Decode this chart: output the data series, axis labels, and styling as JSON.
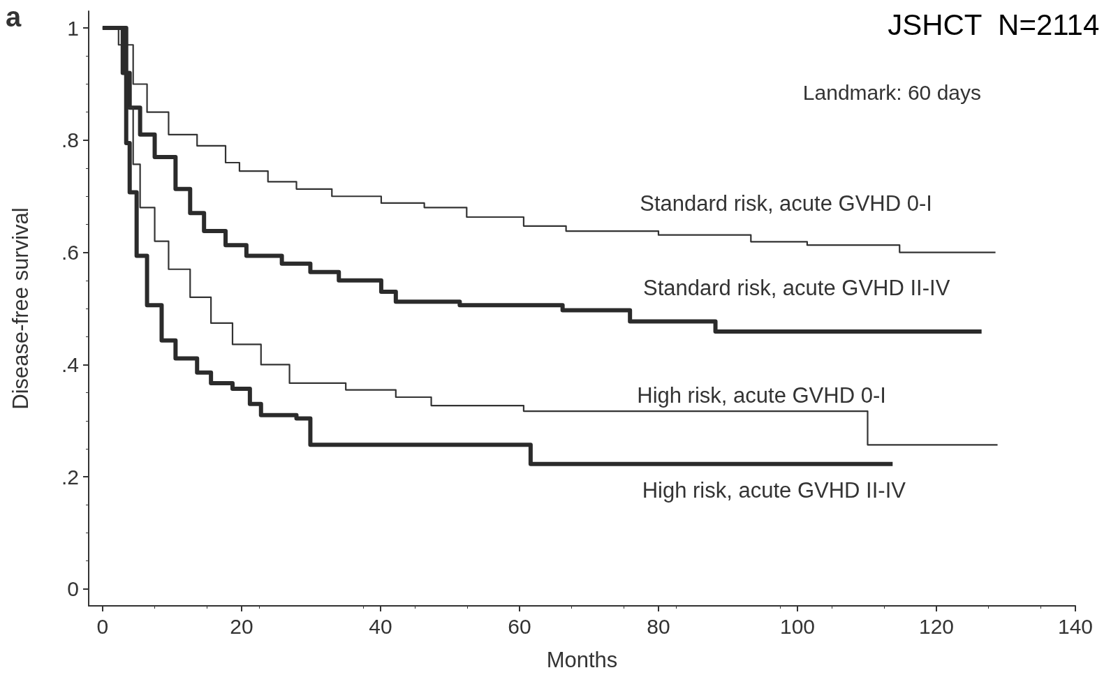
{
  "chart_data": {
    "type": "step",
    "xlabel": "Months",
    "ylabel": "Disease-free survival",
    "xlim": [
      -2,
      140
    ],
    "xticks": [
      0,
      20,
      40,
      60,
      80,
      100,
      120,
      140
    ],
    "ylim": [
      -0.03,
      1.03
    ],
    "yticks": [
      0,
      {
        "value": 0.2,
        "label": ".2"
      },
      {
        "value": 0.4,
        "label": ".4"
      },
      {
        "value": 0.6,
        "label": ".6"
      },
      {
        "value": 0.8,
        "label": ".8"
      },
      1
    ],
    "grid": false,
    "marker": "none",
    "line_style": "solid",
    "series": [
      {
        "name": "Standard risk, acute GVHD 0-I",
        "color": "#333333",
        "x": [
          0,
          2.3,
          4.4,
          6.4,
          9.5,
          13.6,
          17.7,
          19.7,
          23.8,
          27.9,
          33,
          40.1,
          46.3,
          52.4,
          60.6,
          66.7,
          80,
          93.3,
          101.4,
          114.7,
          128.5
        ],
        "values": [
          1,
          0.97,
          0.9,
          0.85,
          0.81,
          0.79,
          0.76,
          0.745,
          0.726,
          0.713,
          0.7,
          0.688,
          0.68,
          0.663,
          0.647,
          0.638,
          0.631,
          0.619,
          0.613,
          0.6,
          0.6
        ]
      },
      {
        "name": "Standard risk, acute GVHD II-IV",
        "color": "#2b2b2b",
        "x": [
          0,
          1.8,
          2.9,
          3.9,
          5.4,
          7.5,
          10.5,
          12.6,
          14.6,
          17.7,
          20.7,
          25.8,
          29.9,
          34,
          40.1,
          42.2,
          51.4,
          66.2,
          75.9,
          88.2,
          126.5
        ],
        "values": [
          1,
          1,
          0.92,
          0.858,
          0.81,
          0.77,
          0.713,
          0.67,
          0.638,
          0.613,
          0.594,
          0.58,
          0.565,
          0.55,
          0.53,
          0.512,
          0.506,
          0.497,
          0.477,
          0.459,
          0.459
        ]
      },
      {
        "name": "High risk, acute GVHD 0-I",
        "color": "#333333",
        "x": [
          0,
          2.3,
          3.4,
          4.4,
          5.4,
          7.5,
          9.5,
          12.6,
          15.6,
          18.7,
          22.8,
          26.9,
          35,
          42.2,
          47.3,
          60.6,
          110.1,
          128.8
        ],
        "values": [
          1,
          1,
          0.858,
          0.757,
          0.68,
          0.62,
          0.57,
          0.52,
          0.474,
          0.436,
          0.4,
          0.367,
          0.355,
          0.342,
          0.327,
          0.317,
          0.257,
          0.257
        ]
      },
      {
        "name": "High risk, acute GVHD II-IV",
        "color": "#2b2b2b",
        "x": [
          0,
          1.8,
          3.4,
          3.9,
          4.9,
          6.4,
          8.5,
          10.5,
          13.6,
          15.6,
          18.7,
          21.2,
          22.8,
          27.9,
          29.9,
          61.6,
          113.7
        ],
        "values": [
          1,
          1,
          0.795,
          0.707,
          0.594,
          0.506,
          0.443,
          0.411,
          0.386,
          0.367,
          0.357,
          0.33,
          0.31,
          0.304,
          0.257,
          0.223,
          0.223
        ]
      }
    ],
    "annotations": [
      "a",
      "JSHCT  N=2114",
      "Landmark: 60 days"
    ]
  }
}
